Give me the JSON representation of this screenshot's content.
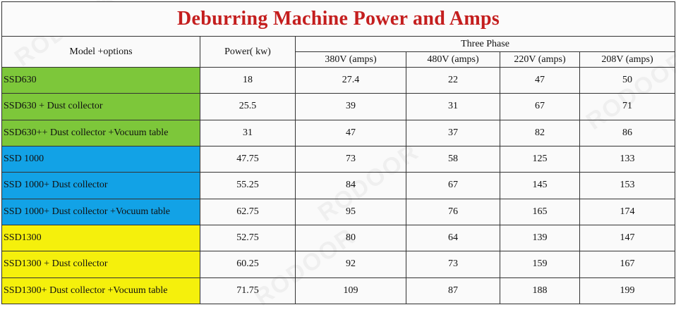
{
  "title": "Deburring Machine Power and Amps",
  "headers": {
    "model": "Model +options",
    "power": "Power( kw)",
    "three_phase": "Three Phase",
    "v380": "380V   (amps)",
    "v480": "480V   (amps)",
    "v220": "220V   (amps)",
    "v208": "208V  (amps)"
  },
  "colors": {
    "title": "#c41e1e",
    "ssd630_group": "#7dc73a",
    "ssd1000_group": "#12a2e6",
    "ssd1300_group": "#f5f00c"
  },
  "rows": [
    {
      "model": "SSD630",
      "power": "18",
      "v380": "27.4",
      "v480": "22",
      "v220": "47",
      "v208": "50"
    },
    {
      "model": "SSD630 + Dust collector",
      "power": "25.5",
      "v380": "39",
      "v480": "31",
      "v220": "67",
      "v208": "71"
    },
    {
      "model": "SSD630++ Dust collector +Vocuum table",
      "power": "31",
      "v380": "47",
      "v480": "37",
      "v220": "82",
      "v208": "86"
    },
    {
      "model": "SSD 1000",
      "power": "47.75",
      "v380": "73",
      "v480": "58",
      "v220": "125",
      "v208": "133"
    },
    {
      "model": "SSD 1000+ Dust collector",
      "power": "55.25",
      "v380": "84",
      "v480": "67",
      "v220": "145",
      "v208": "153"
    },
    {
      "model": "SSD 1000+ Dust collector  +Vocuum table",
      "power": "62.75",
      "v380": "95",
      "v480": "76",
      "v220": "165",
      "v208": "174"
    },
    {
      "model": "SSD1300",
      "power": "52.75",
      "v380": "80",
      "v480": "64",
      "v220": "139",
      "v208": "147"
    },
    {
      "model": "SSD1300 + Dust collector",
      "power": "60.25",
      "v380": "92",
      "v480": "73",
      "v220": "159",
      "v208": "167"
    },
    {
      "model": "SSD1300+ Dust collector  +Vocuum table",
      "power": "71.75",
      "v380": "109",
      "v480": "87",
      "v220": "188",
      "v208": "199"
    }
  ]
}
